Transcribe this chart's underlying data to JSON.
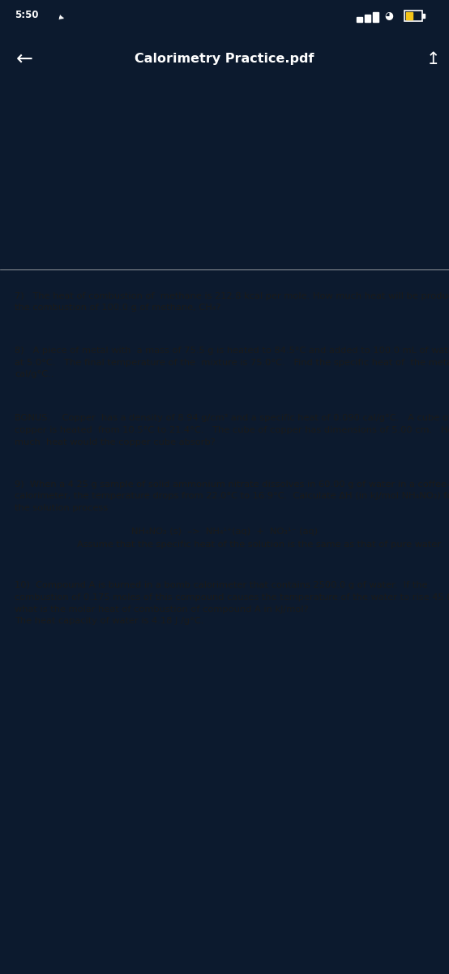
{
  "bg_dark": "#0c1a2e",
  "bg_lavender": "#f0f0f6",
  "bg_white": "#ffffff",
  "text_color": "#1a1a1a",
  "header_title": "Calorimetry Practice.pdf",
  "status_time": "5:50",
  "font_size_body": 8.2,
  "font_size_header": 11.5,
  "font_size_status": 8.5,
  "q7_line1": "7)   The heat of combustion of  methane is 212.8 kcal per mole. How much heat will be produced in",
  "q7_line2": "the combustion of 100.0 g of methane, CH₄?",
  "q8_line1": "8)   A piece of metal with  a mass of 75.5 g is heated to 84.5°C and added to 100.0 mL of water",
  "q8_line2": "at 5.0°C.   The final temperature of the  mixture is 75.0°C.   Find the specific heat of  the metal in",
  "q8_line3": "cal/g°C..",
  "bonus_line1": "BONUS.    Copper  has a density of 8.94 g/cm³ and a specific heat of 0.090 cal/g°C.   A cube of",
  "bonus_line2": "copper is heated  from 10.5°C to 21.4°C.   The cube of copper has dimensions of 5.00 cm.   How",
  "bonus_line3": "much  heat would the copper cube absorb?",
  "q9_line1": "9)  When a 4.25 g sample of solid ammonium nitrate dissolves in 60.00 g of water in a coffee-cup",
  "q9_line2": "calorimeter, the temperature drops from 22.0°C to 16.9°C.  Calculate ΔH (in kJ/mol NH₄NO₃) for",
  "q9_line3": "the solution process",
  "eq_line": "NH₄NO₃ (s)  –>  NH₄¹⁺(aq)  +  NO₃¹⁻ (aq)",
  "assume_line": "Assume that the specific heat of the solution is the same as that of pure water.",
  "q10_line1": "10)  Compound A is burned in a bomb calorimeter that contains 2500.0 g of water.  If the",
  "q10_line2": "combustion of 0.175 moles of this compound causes the temperature of the water to rise 45.0°C,",
  "q10_line3": "what is the molar heat of combustion of compound A in kJ/mol?",
  "q10_line4": "The heat capacity of water is 4.18 J /g°C.",
  "bottom_bar_color": "#222222"
}
